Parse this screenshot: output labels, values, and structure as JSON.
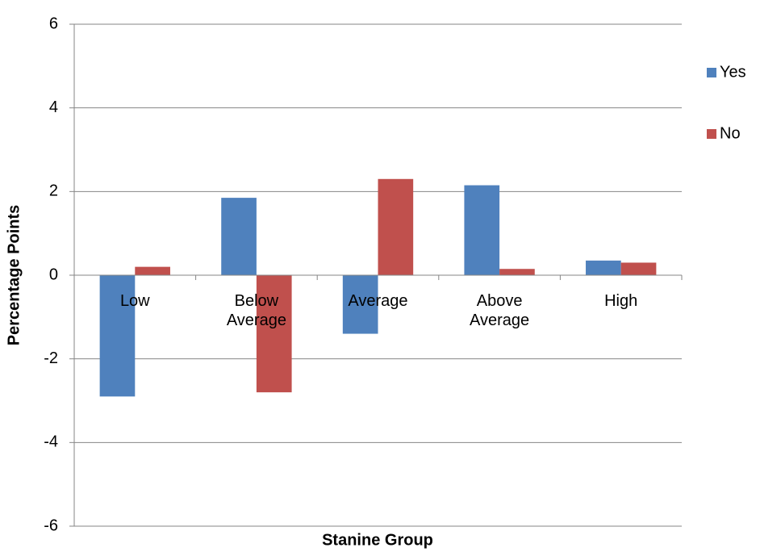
{
  "chart_data": {
    "type": "bar",
    "x_label": "Stanine Group",
    "y_label": "Percentage Points",
    "categories": [
      "Low",
      "Below Average",
      "Average",
      "Above Average",
      "High"
    ],
    "series": [
      {
        "name": "Yes",
        "color": "#4f81bd",
        "values": [
          -2.9,
          1.85,
          -1.4,
          2.15,
          0.35
        ]
      },
      {
        "name": "No",
        "color": "#c0504d",
        "values": [
          0.2,
          -2.8,
          2.3,
          0.15,
          0.3
        ]
      }
    ],
    "ylim": [
      -6,
      6
    ],
    "yticks": [
      -6,
      -4,
      -2,
      0,
      2,
      4,
      6
    ],
    "grid": true,
    "legend": "right"
  }
}
